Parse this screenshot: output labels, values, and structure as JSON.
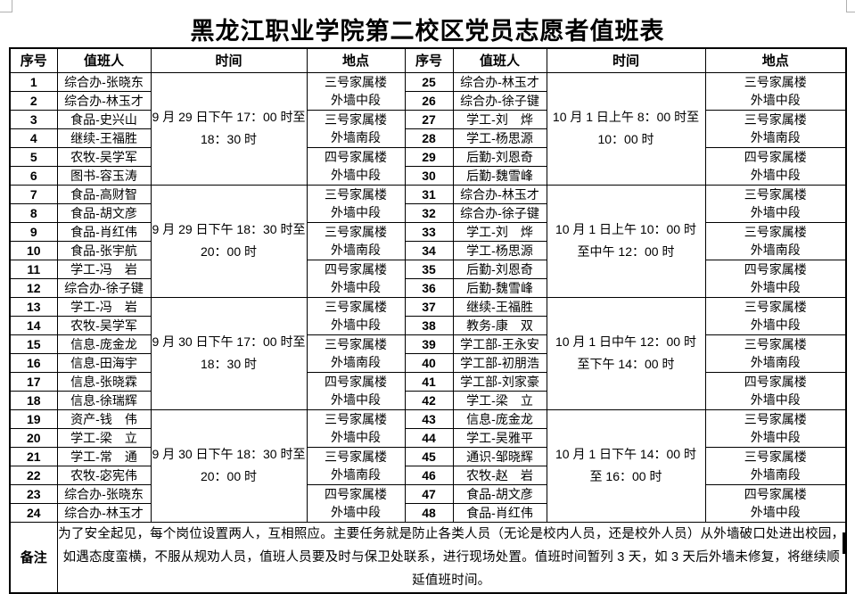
{
  "title": "黑龙江职业学院第二校区党员志愿者值班表",
  "table": {
    "headers": [
      "序号",
      "值班人",
      "时间",
      "地点",
      "序号",
      "值班人",
      "时间",
      "地点"
    ],
    "left": {
      "entries": [
        {
          "no": "1",
          "person": "综合办-张晓东"
        },
        {
          "no": "2",
          "person": "综合办-林玉才"
        },
        {
          "no": "3",
          "person": "食品-史兴山"
        },
        {
          "no": "4",
          "person": "继续-王福胜"
        },
        {
          "no": "5",
          "person": "农牧-吴学军"
        },
        {
          "no": "6",
          "person": "图书-容玉涛"
        },
        {
          "no": "7",
          "person": "食品-高财智"
        },
        {
          "no": "8",
          "person": "食品-胡文彦"
        },
        {
          "no": "9",
          "person": "食品-肖红伟"
        },
        {
          "no": "10",
          "person": "食品-张宇航"
        },
        {
          "no": "11",
          "person": "学工-冯　岩"
        },
        {
          "no": "12",
          "person": "综合办-徐子键"
        },
        {
          "no": "13",
          "person": "学工-冯　岩"
        },
        {
          "no": "14",
          "person": "农牧-吴学军"
        },
        {
          "no": "15",
          "person": "信息-庞金龙"
        },
        {
          "no": "16",
          "person": "信息-田海宇"
        },
        {
          "no": "17",
          "person": "信息-张晓霖"
        },
        {
          "no": "18",
          "person": "信息-徐瑞辉"
        },
        {
          "no": "19",
          "person": "资产-钱　伟"
        },
        {
          "no": "20",
          "person": "学工-梁　立"
        },
        {
          "no": "21",
          "person": "学工-常　通"
        },
        {
          "no": "22",
          "person": "农牧-宓宪伟"
        },
        {
          "no": "23",
          "person": "综合办-张晓东"
        },
        {
          "no": "24",
          "person": "综合办-林玉才"
        }
      ],
      "times": [
        "9 月 29 日下午 17：00 时至\n18：30 时",
        "9 月 29 日下午 18：30 时至\n20：00 时",
        "9 月 30 日下午 17：00 时至\n18：30 时",
        "9 月 30 日下午 18：30 时至\n20：00 时"
      ],
      "locations": [
        "三号家属楼\n外墙中段",
        "三号家属楼\n外墙南段",
        "四号家属楼\n外墙中段",
        "三号家属楼\n外墙中段",
        "三号家属楼\n外墙南段",
        "四号家属楼\n外墙中段",
        "三号家属楼\n外墙中段",
        "三号家属楼\n外墙南段",
        "四号家属楼\n外墙中段",
        "三号家属楼\n外墙中段",
        "三号家属楼\n外墙南段",
        "四号家属楼\n外墙中段"
      ]
    },
    "right": {
      "entries": [
        {
          "no": "25",
          "person": "综合办-林玉才"
        },
        {
          "no": "26",
          "person": "综合办-徐子键"
        },
        {
          "no": "27",
          "person": "学工-刘　烨"
        },
        {
          "no": "28",
          "person": "学工-杨思源"
        },
        {
          "no": "29",
          "person": "后勤-刘恩奇"
        },
        {
          "no": "30",
          "person": "后勤-魏雪峰"
        },
        {
          "no": "31",
          "person": "综合办-林玉才"
        },
        {
          "no": "32",
          "person": "综合办-徐子键"
        },
        {
          "no": "33",
          "person": "学工-刘　烨"
        },
        {
          "no": "34",
          "person": "学工-杨思源"
        },
        {
          "no": "35",
          "person": "后勤-刘恩奇"
        },
        {
          "no": "36",
          "person": "后勤-魏雪峰"
        },
        {
          "no": "37",
          "person": "继续-王福胜"
        },
        {
          "no": "38",
          "person": "教务-康　双"
        },
        {
          "no": "39",
          "person": "学工部-王永安"
        },
        {
          "no": "40",
          "person": "学工部-初朋浩"
        },
        {
          "no": "41",
          "person": "学工部-刘家豪"
        },
        {
          "no": "42",
          "person": "学工-梁　立"
        },
        {
          "no": "43",
          "person": "信息-庞金龙"
        },
        {
          "no": "44",
          "person": "学工-吴雅平"
        },
        {
          "no": "45",
          "person": "通识-邹晓辉"
        },
        {
          "no": "46",
          "person": "农牧-赵　岩"
        },
        {
          "no": "47",
          "person": "食品-胡文彦"
        },
        {
          "no": "48",
          "person": "食品-肖红伟"
        }
      ],
      "times": [
        "10 月 1 日上午 8：00 时至\n10：00 时",
        "10 月 1 日上午 10：00 时\n至中午 12：00 时",
        "10 月 1 日中午 12：00 时\n至下午 14：00 时",
        "10 月 1 日下午 14：00 时\n至 16：00 时"
      ],
      "locations": [
        "三号家属楼\n外墙中段",
        "三号家属楼\n外墙南段",
        "四号家属楼\n外墙中段",
        "三号家属楼\n外墙中段",
        "三号家属楼\n外墙南段",
        "四号家属楼\n外墙中段",
        "三号家属楼\n外墙中段",
        "三号家属楼\n外墙南段",
        "四号家属楼\n外墙中段",
        "三号家属楼\n外墙中段",
        "三号家属楼\n外墙南段",
        "四号家属楼\n外墙中段"
      ]
    },
    "remark_label": "备注",
    "remark": "为了安全起见，每个岗位设置两人，互相照应。主要任务就是防止各类人员（无论是校内人员，还是校外人员）从外墙破口处进出校园，如遇态度蛮横，不服从规劝人员，值班人员要及时与保卫处联系，进行现场处置。值班时间暂列 3 天，如 3 天后外墙未修复，将继续顺延值班时间。"
  }
}
